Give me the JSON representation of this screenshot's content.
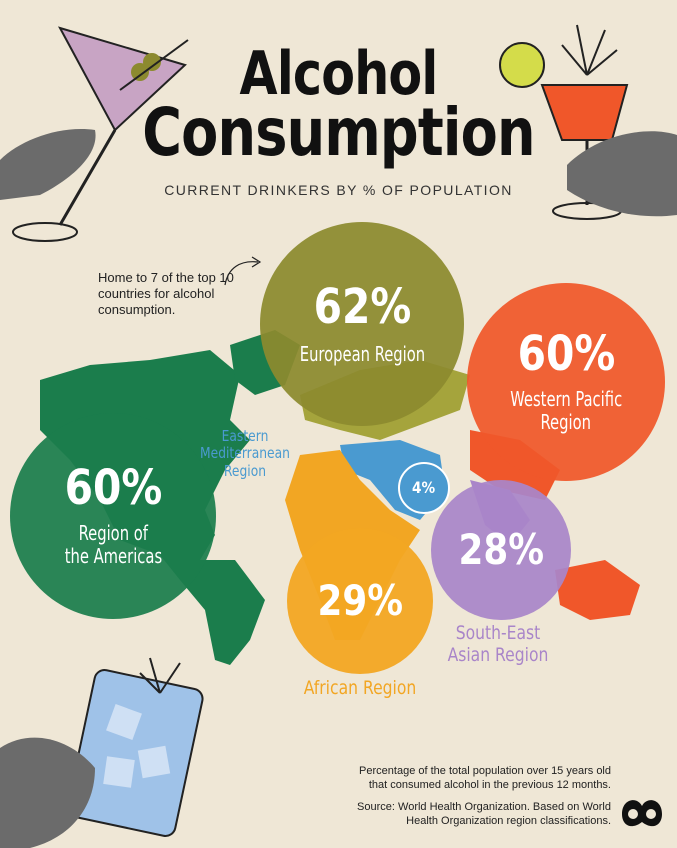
{
  "title_line1": "Alcohol",
  "title_line2": "Consumption",
  "subtitle": "CURRENT DRINKERS BY % OF POPULATION",
  "note": "Home to 7 of the top 10 countries for alcohol consumption.",
  "regions": {
    "european": {
      "pct": "62%",
      "name": "European Region",
      "color": "#8c8a2e"
    },
    "western_pacific": {
      "pct": "60%",
      "name_line1": "Western Pacific",
      "name_line2": "Region",
      "color": "#f0572a"
    },
    "americas": {
      "pct": "60%",
      "name_line1": "Region of",
      "name_line2": "the Americas",
      "color": "#1b7d4c"
    },
    "eastern_med": {
      "pct": "4%",
      "name_line1": "Eastern",
      "name_line2": "Mediterranean",
      "name_line3": "Region",
      "color": "#4a9ad0"
    },
    "african": {
      "pct": "29%",
      "name": "African Region",
      "color": "#f2a623"
    },
    "south_east_asian": {
      "pct": "28%",
      "name_line1": "South-East",
      "name_line2": "Asian Region",
      "color": "#a985c9"
    }
  },
  "footnote_line1": "Percentage of the total population over 15 years old",
  "footnote_line2": "that consumed alcohol in the previous 12 months.",
  "source_line1": "Source: World Health Organization. Based on World",
  "source_line2": "Health Organization region classifications."
}
